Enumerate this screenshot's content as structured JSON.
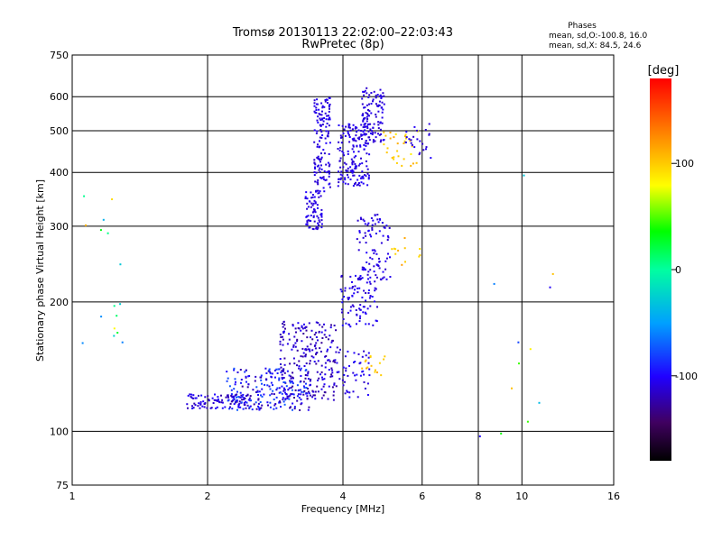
{
  "chart_data": {
    "type": "scatter",
    "title": "Tromsø 20130113 22:02:00–22:03:43",
    "subtitle": "RwPretec (8p)",
    "xlabel": "Frequency [MHz]",
    "ylabel": "Stationary phase Virtual Height [km]",
    "x_scale": "log",
    "y_scale": "log",
    "xlim": [
      1,
      16
    ],
    "ylim": [
      75,
      750
    ],
    "x_ticks": [
      1,
      2,
      4,
      6,
      8,
      10,
      16
    ],
    "y_ticks": [
      75,
      100,
      200,
      300,
      400,
      500,
      600,
      750
    ],
    "grid": true,
    "phase_stats": {
      "title": "Phases",
      "line_o": "mean, sd,O:-100.8, 16.0",
      "line_x": "mean, sd,X:  84.5, 24.6"
    },
    "colorbar": {
      "label": "[deg]",
      "range": [
        -180,
        180
      ],
      "ticks": [
        100,
        0,
        -100
      ],
      "tick_labels": [
        "100",
        "0",
        "-100"
      ]
    },
    "clusters": [
      {
        "x": [
          1.8,
          2.5
        ],
        "y": [
          113,
          122
        ],
        "n": 90,
        "phase": [
          -125,
          -95
        ]
      },
      {
        "x": [
          2.2,
          3.4
        ],
        "y": [
          112,
          140
        ],
        "n": 230,
        "phase": [
          -130,
          -70
        ]
      },
      {
        "x": [
          2.9,
          3.9
        ],
        "y": [
          118,
          180
        ],
        "n": 220,
        "phase": [
          -130,
          -100
        ]
      },
      {
        "x": [
          3.85,
          4.6
        ],
        "y": [
          120,
          155
        ],
        "n": 50,
        "phase": [
          -115,
          -95
        ]
      },
      {
        "x": [
          3.95,
          4.8
        ],
        "y": [
          175,
          230
        ],
        "n": 90,
        "phase": [
          -115,
          -95
        ]
      },
      {
        "x": [
          4.3,
          5.1
        ],
        "y": [
          225,
          320
        ],
        "n": 90,
        "phase": [
          -115,
          -100
        ]
      },
      {
        "x": [
          4.3,
          5.0
        ],
        "y": [
          135,
          150
        ],
        "n": 15,
        "phase": [
          95,
          115
        ]
      },
      {
        "x": [
          3.3,
          3.6
        ],
        "y": [
          295,
          360
        ],
        "n": 70,
        "phase": [
          -115,
          -100
        ]
      },
      {
        "x": [
          3.45,
          3.75
        ],
        "y": [
          360,
          600
        ],
        "n": 140,
        "phase": [
          -115,
          -100
        ]
      },
      {
        "x": [
          3.9,
          4.6
        ],
        "y": [
          370,
          520
        ],
        "n": 160,
        "phase": [
          -115,
          -100
        ]
      },
      {
        "x": [
          4.4,
          4.95
        ],
        "y": [
          470,
          630
        ],
        "n": 110,
        "phase": [
          -115,
          -100
        ]
      },
      {
        "x": [
          4.9,
          5.9
        ],
        "y": [
          410,
          500
        ],
        "n": 30,
        "phase": [
          85,
          115
        ]
      },
      {
        "x": [
          5.5,
          6.3
        ],
        "y": [
          430,
          520
        ],
        "n": 25,
        "phase": [
          -115,
          -100
        ]
      },
      {
        "x": [
          1.05,
          1.3
        ],
        "y": [
          130,
          360
        ],
        "n": 16,
        "phase": [
          -80,
          110
        ]
      },
      {
        "x": [
          5.0,
          6.0
        ],
        "y": [
          240,
          290
        ],
        "n": 12,
        "phase": [
          90,
          120
        ]
      },
      {
        "x": [
          8.0,
          13.0
        ],
        "y": [
          95,
          400
        ],
        "n": 12,
        "phase": [
          -120,
          110
        ]
      }
    ]
  }
}
